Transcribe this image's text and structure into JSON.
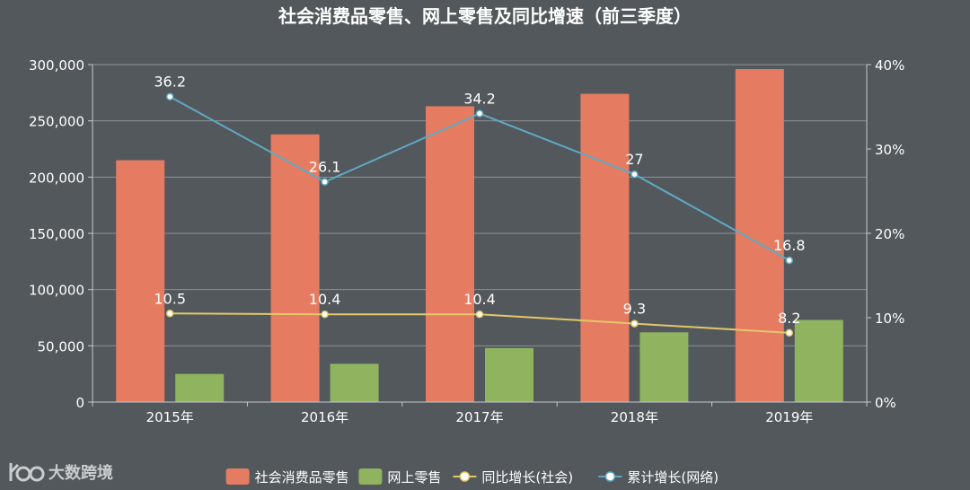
{
  "chart_data": {
    "type": "bar",
    "title": "社会消费品零售、网上零售及同比增速（前三季度）",
    "categories": [
      "2015年",
      "2016年",
      "2017年",
      "2018年",
      "2019年"
    ],
    "y_left": {
      "ylim": [
        0,
        300000
      ],
      "ticks": [
        "0",
        "50,000",
        "100,000",
        "150,000",
        "200,000",
        "250,000",
        "300,000"
      ]
    },
    "y_right": {
      "ylim": [
        0,
        40
      ],
      "ticks": [
        "0%",
        "10%",
        "20%",
        "30%",
        "40%"
      ]
    },
    "series": [
      {
        "name": "社会消费品零售",
        "type": "bar",
        "axis": "left",
        "color": "#e57c61",
        "values": [
          215000,
          238000,
          263000,
          274000,
          296000
        ]
      },
      {
        "name": "网上零售",
        "type": "bar",
        "axis": "left",
        "color": "#8fb35f",
        "values": [
          25000,
          34000,
          48000,
          62000,
          73000
        ]
      },
      {
        "name": "同比增长(社会)",
        "type": "line",
        "axis": "right",
        "color": "#e3c76a",
        "values": [
          10.5,
          10.4,
          10.4,
          9.3,
          8.2
        ],
        "labels": [
          "10.5",
          "10.4",
          "10.4",
          "9.3",
          "8.2"
        ]
      },
      {
        "name": "累计增长(网络)",
        "type": "line",
        "axis": "right",
        "color": "#5fa9c4",
        "values": [
          36.2,
          26.1,
          34.2,
          27,
          16.8
        ],
        "labels": [
          "36.2",
          "26.1",
          "34.2",
          "27",
          "16.8"
        ]
      }
    ],
    "legend": [
      "社会消费品零售",
      "网上零售",
      "同比增长(社会)",
      "累计增长(网络)"
    ],
    "legend_position": "bottom-center",
    "grid": true
  },
  "watermark": {
    "text": "大数跨境"
  }
}
